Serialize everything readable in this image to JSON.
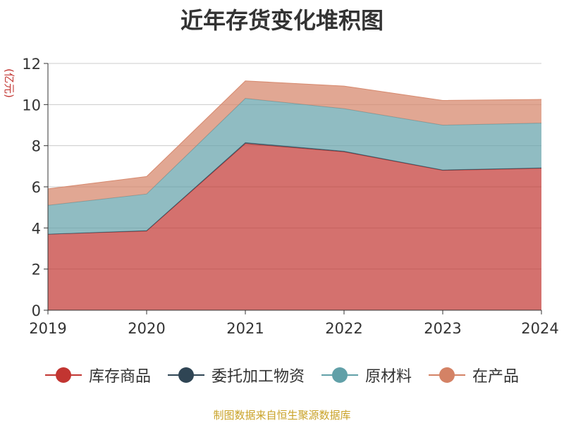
{
  "chart_data": {
    "type": "area",
    "stacked": true,
    "title": "近年存货变化堆积图",
    "ylabel": "(亿元)",
    "xlabel": "",
    "categories": [
      "2019",
      "2020",
      "2021",
      "2022",
      "2023",
      "2024"
    ],
    "ylim": [
      0,
      12
    ],
    "yticks": [
      0,
      2,
      4,
      6,
      8,
      10,
      12
    ],
    "grid": true,
    "legend_position": "bottom",
    "series": [
      {
        "name": "库存商品",
        "color": "#c23531",
        "values": [
          3.7,
          3.85,
          8.1,
          7.7,
          6.8,
          6.9
        ]
      },
      {
        "name": "委托加工物资",
        "color": "#2f4554",
        "values": [
          0.0,
          0.02,
          0.05,
          0.03,
          0.02,
          0.02
        ]
      },
      {
        "name": "原材料",
        "color": "#61a0a8",
        "values": [
          1.4,
          1.78,
          2.15,
          2.07,
          2.18,
          2.18
        ]
      },
      {
        "name": "在产品",
        "color": "#d48265",
        "values": [
          0.8,
          0.85,
          0.85,
          1.1,
          1.2,
          1.15
        ]
      }
    ]
  },
  "source_text": "制图数据来自恒生聚源数据库"
}
